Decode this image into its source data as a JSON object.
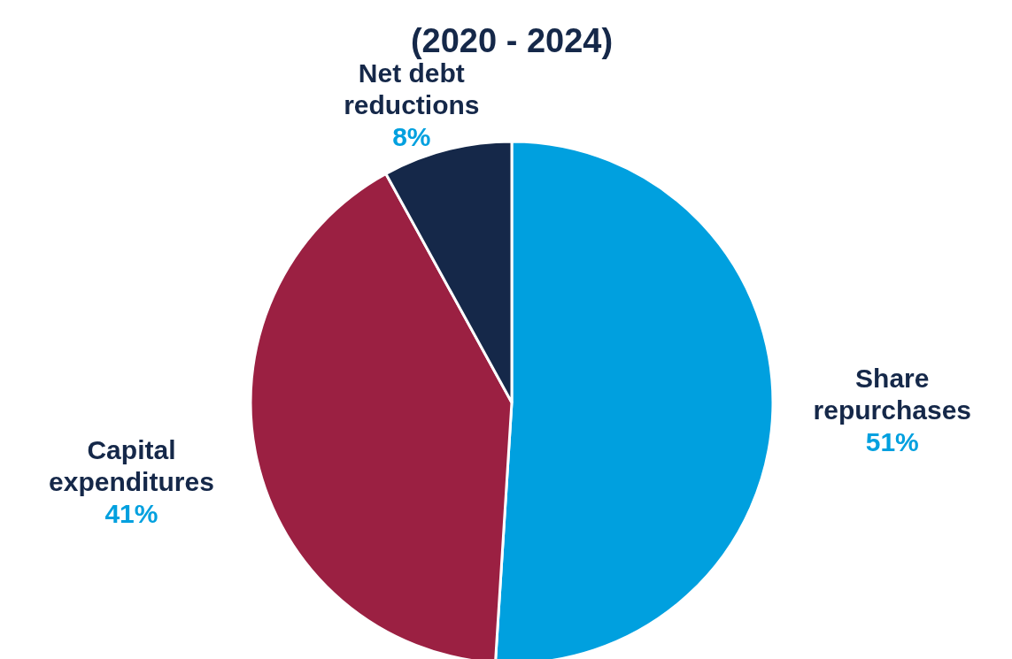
{
  "chart_data": {
    "type": "pie",
    "title": "(2020 - 2024)",
    "categories": [
      "Share repurchases",
      "Capital expenditures",
      "Net debt reductions"
    ],
    "values": [
      51,
      41,
      8
    ],
    "colors": [
      "#00a0df",
      "#9b2042",
      "#152849"
    ],
    "value_labels": [
      "51%",
      "41%",
      "8%"
    ]
  }
}
